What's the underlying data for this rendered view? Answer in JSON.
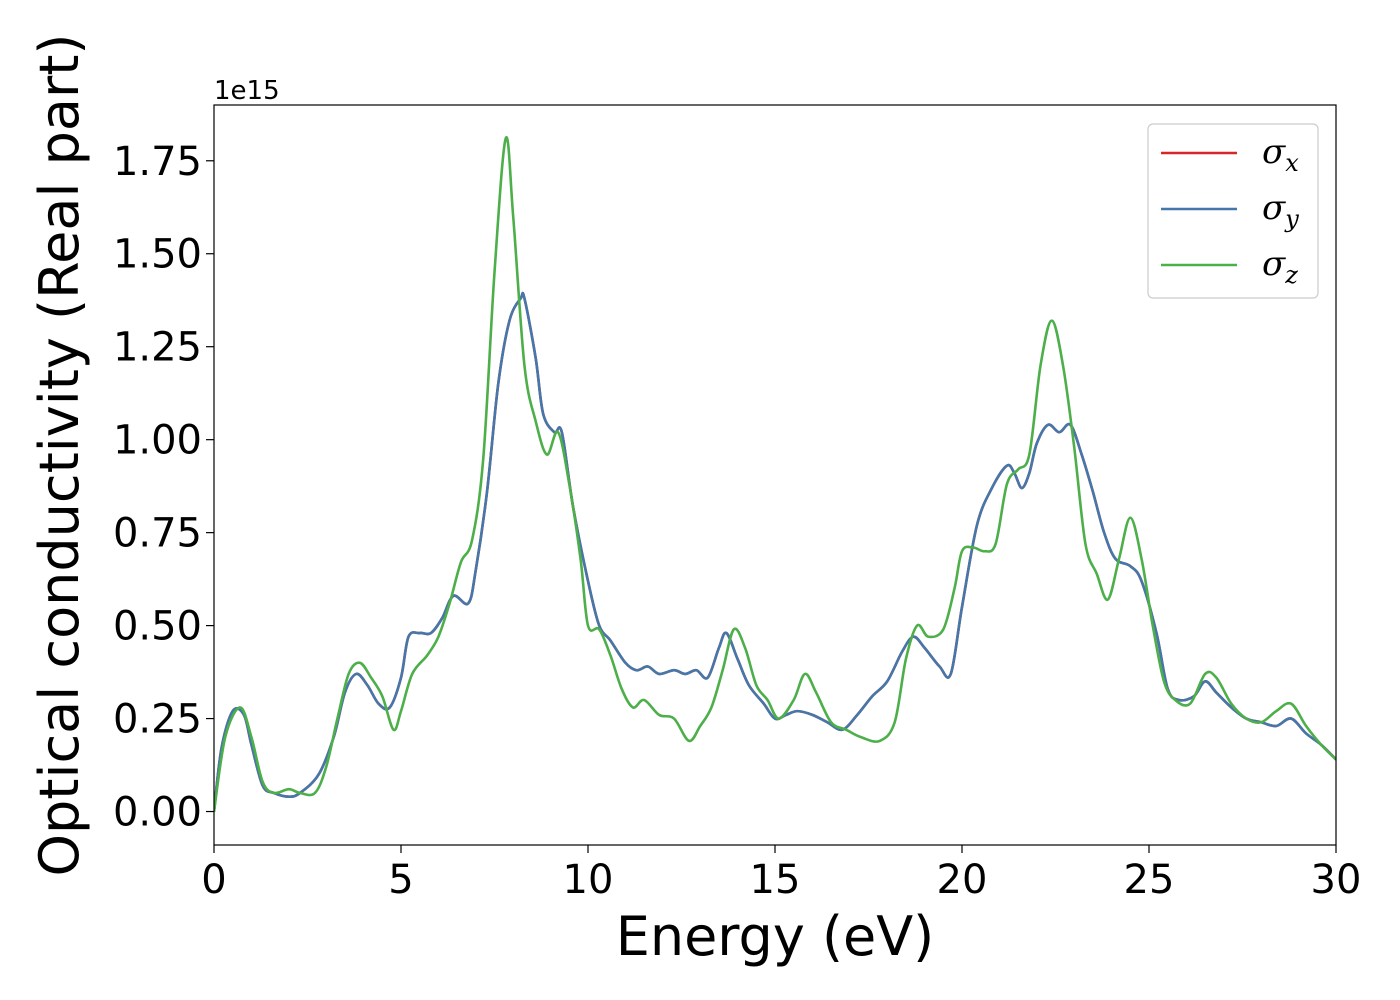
{
  "chart_data": {
    "type": "line",
    "xlabel": "Energy (eV)",
    "ylabel": "Optical conductivity (Real part)",
    "y_offset_label": "1e15",
    "xlim": [
      0,
      30
    ],
    "ylim": [
      -0.09,
      1.9
    ],
    "x_ticks": [
      0,
      5,
      10,
      15,
      20,
      25,
      30
    ],
    "x_tick_labels": [
      "0",
      "5",
      "10",
      "15",
      "20",
      "25",
      "30"
    ],
    "y_ticks": [
      0.0,
      0.25,
      0.5,
      0.75,
      1.0,
      1.25,
      1.5,
      1.75
    ],
    "y_tick_labels": [
      "0.00",
      "0.25",
      "0.50",
      "0.75",
      "1.00",
      "1.25",
      "1.50",
      "1.75"
    ],
    "grid": false,
    "legend_position": "top-right",
    "series": [
      {
        "name": "σx",
        "symbol": "σ",
        "subscript": "x",
        "color": "#d62728",
        "points": [
          [
            0,
            0.0
          ],
          [
            0.2,
            0.17
          ],
          [
            0.5,
            0.27
          ],
          [
            0.8,
            0.26
          ],
          [
            1.0,
            0.18
          ],
          [
            1.3,
            0.07
          ],
          [
            1.6,
            0.05
          ],
          [
            2.0,
            0.04
          ],
          [
            2.3,
            0.05
          ],
          [
            2.8,
            0.1
          ],
          [
            3.2,
            0.2
          ],
          [
            3.5,
            0.32
          ],
          [
            3.8,
            0.37
          ],
          [
            4.1,
            0.34
          ],
          [
            4.4,
            0.29
          ],
          [
            4.7,
            0.28
          ],
          [
            5.0,
            0.36
          ],
          [
            5.2,
            0.47
          ],
          [
            5.5,
            0.48
          ],
          [
            5.8,
            0.48
          ],
          [
            6.1,
            0.52
          ],
          [
            6.4,
            0.58
          ],
          [
            6.8,
            0.56
          ],
          [
            7.0,
            0.65
          ],
          [
            7.3,
            0.86
          ],
          [
            7.6,
            1.15
          ],
          [
            7.9,
            1.32
          ],
          [
            8.2,
            1.38
          ],
          [
            8.3,
            1.38
          ],
          [
            8.6,
            1.22
          ],
          [
            8.8,
            1.07
          ],
          [
            9.1,
            1.02
          ],
          [
            9.3,
            1.02
          ],
          [
            9.6,
            0.82
          ],
          [
            10.0,
            0.62
          ],
          [
            10.3,
            0.5
          ],
          [
            10.6,
            0.46
          ],
          [
            11.0,
            0.4
          ],
          [
            11.3,
            0.38
          ],
          [
            11.6,
            0.39
          ],
          [
            11.9,
            0.37
          ],
          [
            12.3,
            0.38
          ],
          [
            12.6,
            0.37
          ],
          [
            12.9,
            0.38
          ],
          [
            13.2,
            0.36
          ],
          [
            13.5,
            0.44
          ],
          [
            13.7,
            0.48
          ],
          [
            14.0,
            0.41
          ],
          [
            14.3,
            0.34
          ],
          [
            14.7,
            0.29
          ],
          [
            15.0,
            0.25
          ],
          [
            15.3,
            0.26
          ],
          [
            15.6,
            0.27
          ],
          [
            16.0,
            0.26
          ],
          [
            16.4,
            0.24
          ],
          [
            16.8,
            0.22
          ],
          [
            17.2,
            0.26
          ],
          [
            17.6,
            0.31
          ],
          [
            18.0,
            0.35
          ],
          [
            18.4,
            0.43
          ],
          [
            18.7,
            0.47
          ],
          [
            19.0,
            0.44
          ],
          [
            19.4,
            0.39
          ],
          [
            19.7,
            0.37
          ],
          [
            20.0,
            0.55
          ],
          [
            20.4,
            0.77
          ],
          [
            20.8,
            0.87
          ],
          [
            21.2,
            0.93
          ],
          [
            21.4,
            0.91
          ],
          [
            21.6,
            0.87
          ],
          [
            21.8,
            0.91
          ],
          [
            22.0,
            0.99
          ],
          [
            22.3,
            1.04
          ],
          [
            22.6,
            1.02
          ],
          [
            22.9,
            1.04
          ],
          [
            23.2,
            0.96
          ],
          [
            23.5,
            0.86
          ],
          [
            23.8,
            0.75
          ],
          [
            24.1,
            0.68
          ],
          [
            24.5,
            0.66
          ],
          [
            24.8,
            0.62
          ],
          [
            25.2,
            0.48
          ],
          [
            25.5,
            0.33
          ],
          [
            25.8,
            0.3
          ],
          [
            26.2,
            0.31
          ],
          [
            26.5,
            0.35
          ],
          [
            26.8,
            0.32
          ],
          [
            27.2,
            0.28
          ],
          [
            27.6,
            0.25
          ],
          [
            28.0,
            0.24
          ],
          [
            28.4,
            0.23
          ],
          [
            28.8,
            0.25
          ],
          [
            29.2,
            0.21
          ],
          [
            29.6,
            0.18
          ],
          [
            30.0,
            0.14
          ]
        ]
      },
      {
        "name": "σy",
        "symbol": "σ",
        "subscript": "y",
        "color": "#4477aa",
        "points": [
          [
            0,
            0.0
          ],
          [
            0.2,
            0.17
          ],
          [
            0.5,
            0.27
          ],
          [
            0.8,
            0.26
          ],
          [
            1.0,
            0.18
          ],
          [
            1.3,
            0.07
          ],
          [
            1.6,
            0.05
          ],
          [
            2.0,
            0.04
          ],
          [
            2.3,
            0.05
          ],
          [
            2.8,
            0.1
          ],
          [
            3.2,
            0.2
          ],
          [
            3.5,
            0.32
          ],
          [
            3.8,
            0.37
          ],
          [
            4.1,
            0.34
          ],
          [
            4.4,
            0.29
          ],
          [
            4.7,
            0.28
          ],
          [
            5.0,
            0.36
          ],
          [
            5.2,
            0.47
          ],
          [
            5.5,
            0.48
          ],
          [
            5.8,
            0.48
          ],
          [
            6.1,
            0.52
          ],
          [
            6.4,
            0.58
          ],
          [
            6.8,
            0.56
          ],
          [
            7.0,
            0.65
          ],
          [
            7.3,
            0.86
          ],
          [
            7.6,
            1.15
          ],
          [
            7.9,
            1.32
          ],
          [
            8.2,
            1.38
          ],
          [
            8.3,
            1.38
          ],
          [
            8.6,
            1.22
          ],
          [
            8.8,
            1.07
          ],
          [
            9.1,
            1.02
          ],
          [
            9.3,
            1.02
          ],
          [
            9.6,
            0.82
          ],
          [
            10.0,
            0.62
          ],
          [
            10.3,
            0.5
          ],
          [
            10.6,
            0.46
          ],
          [
            11.0,
            0.4
          ],
          [
            11.3,
            0.38
          ],
          [
            11.6,
            0.39
          ],
          [
            11.9,
            0.37
          ],
          [
            12.3,
            0.38
          ],
          [
            12.6,
            0.37
          ],
          [
            12.9,
            0.38
          ],
          [
            13.2,
            0.36
          ],
          [
            13.5,
            0.44
          ],
          [
            13.7,
            0.48
          ],
          [
            14.0,
            0.41
          ],
          [
            14.3,
            0.34
          ],
          [
            14.7,
            0.29
          ],
          [
            15.0,
            0.25
          ],
          [
            15.3,
            0.26
          ],
          [
            15.6,
            0.27
          ],
          [
            16.0,
            0.26
          ],
          [
            16.4,
            0.24
          ],
          [
            16.8,
            0.22
          ],
          [
            17.2,
            0.26
          ],
          [
            17.6,
            0.31
          ],
          [
            18.0,
            0.35
          ],
          [
            18.4,
            0.43
          ],
          [
            18.7,
            0.47
          ],
          [
            19.0,
            0.44
          ],
          [
            19.4,
            0.39
          ],
          [
            19.7,
            0.37
          ],
          [
            20.0,
            0.55
          ],
          [
            20.4,
            0.77
          ],
          [
            20.8,
            0.87
          ],
          [
            21.2,
            0.93
          ],
          [
            21.4,
            0.91
          ],
          [
            21.6,
            0.87
          ],
          [
            21.8,
            0.91
          ],
          [
            22.0,
            0.99
          ],
          [
            22.3,
            1.04
          ],
          [
            22.6,
            1.02
          ],
          [
            22.9,
            1.04
          ],
          [
            23.2,
            0.96
          ],
          [
            23.5,
            0.86
          ],
          [
            23.8,
            0.75
          ],
          [
            24.1,
            0.68
          ],
          [
            24.5,
            0.66
          ],
          [
            24.8,
            0.62
          ],
          [
            25.2,
            0.48
          ],
          [
            25.5,
            0.33
          ],
          [
            25.8,
            0.3
          ],
          [
            26.2,
            0.31
          ],
          [
            26.5,
            0.35
          ],
          [
            26.8,
            0.32
          ],
          [
            27.2,
            0.28
          ],
          [
            27.6,
            0.25
          ],
          [
            28.0,
            0.24
          ],
          [
            28.4,
            0.23
          ],
          [
            28.8,
            0.25
          ],
          [
            29.2,
            0.21
          ],
          [
            29.6,
            0.18
          ],
          [
            30.0,
            0.14
          ]
        ]
      },
      {
        "name": "σz",
        "symbol": "σ",
        "subscript": "z",
        "color": "#4daf4a",
        "points": [
          [
            0,
            0.0
          ],
          [
            0.3,
            0.2
          ],
          [
            0.7,
            0.28
          ],
          [
            1.0,
            0.2
          ],
          [
            1.3,
            0.08
          ],
          [
            1.6,
            0.05
          ],
          [
            2.0,
            0.06
          ],
          [
            2.3,
            0.05
          ],
          [
            2.7,
            0.05
          ],
          [
            3.0,
            0.12
          ],
          [
            3.3,
            0.25
          ],
          [
            3.6,
            0.37
          ],
          [
            3.9,
            0.4
          ],
          [
            4.2,
            0.36
          ],
          [
            4.5,
            0.31
          ],
          [
            4.8,
            0.22
          ],
          [
            5.0,
            0.27
          ],
          [
            5.3,
            0.37
          ],
          [
            5.7,
            0.42
          ],
          [
            6.0,
            0.47
          ],
          [
            6.3,
            0.56
          ],
          [
            6.6,
            0.67
          ],
          [
            6.9,
            0.73
          ],
          [
            7.2,
            0.95
          ],
          [
            7.5,
            1.45
          ],
          [
            7.8,
            1.81
          ],
          [
            8.0,
            1.6
          ],
          [
            8.3,
            1.2
          ],
          [
            8.6,
            1.05
          ],
          [
            8.9,
            0.96
          ],
          [
            9.2,
            1.02
          ],
          [
            9.5,
            0.88
          ],
          [
            9.8,
            0.68
          ],
          [
            10.0,
            0.5
          ],
          [
            10.3,
            0.49
          ],
          [
            10.6,
            0.42
          ],
          [
            10.9,
            0.33
          ],
          [
            11.2,
            0.28
          ],
          [
            11.5,
            0.3
          ],
          [
            11.9,
            0.26
          ],
          [
            12.3,
            0.25
          ],
          [
            12.7,
            0.19
          ],
          [
            13.0,
            0.23
          ],
          [
            13.3,
            0.28
          ],
          [
            13.6,
            0.38
          ],
          [
            13.9,
            0.49
          ],
          [
            14.2,
            0.44
          ],
          [
            14.5,
            0.34
          ],
          [
            14.8,
            0.3
          ],
          [
            15.1,
            0.25
          ],
          [
            15.5,
            0.3
          ],
          [
            15.8,
            0.37
          ],
          [
            16.1,
            0.32
          ],
          [
            16.5,
            0.24
          ],
          [
            16.9,
            0.22
          ],
          [
            17.3,
            0.2
          ],
          [
            17.8,
            0.19
          ],
          [
            18.2,
            0.24
          ],
          [
            18.5,
            0.41
          ],
          [
            18.8,
            0.5
          ],
          [
            19.1,
            0.47
          ],
          [
            19.5,
            0.49
          ],
          [
            19.8,
            0.6
          ],
          [
            20.0,
            0.7
          ],
          [
            20.3,
            0.71
          ],
          [
            20.6,
            0.7
          ],
          [
            20.9,
            0.72
          ],
          [
            21.2,
            0.88
          ],
          [
            21.5,
            0.92
          ],
          [
            21.8,
            0.96
          ],
          [
            22.1,
            1.2
          ],
          [
            22.4,
            1.32
          ],
          [
            22.7,
            1.2
          ],
          [
            23.0,
            0.98
          ],
          [
            23.3,
            0.72
          ],
          [
            23.6,
            0.64
          ],
          [
            23.9,
            0.57
          ],
          [
            24.2,
            0.68
          ],
          [
            24.5,
            0.79
          ],
          [
            24.8,
            0.68
          ],
          [
            25.1,
            0.5
          ],
          [
            25.4,
            0.35
          ],
          [
            25.7,
            0.3
          ],
          [
            26.1,
            0.29
          ],
          [
            26.5,
            0.37
          ],
          [
            26.8,
            0.36
          ],
          [
            27.2,
            0.29
          ],
          [
            27.6,
            0.25
          ],
          [
            28.0,
            0.24
          ],
          [
            28.4,
            0.27
          ],
          [
            28.8,
            0.29
          ],
          [
            29.2,
            0.23
          ],
          [
            29.6,
            0.18
          ],
          [
            30.0,
            0.14
          ]
        ]
      }
    ]
  }
}
